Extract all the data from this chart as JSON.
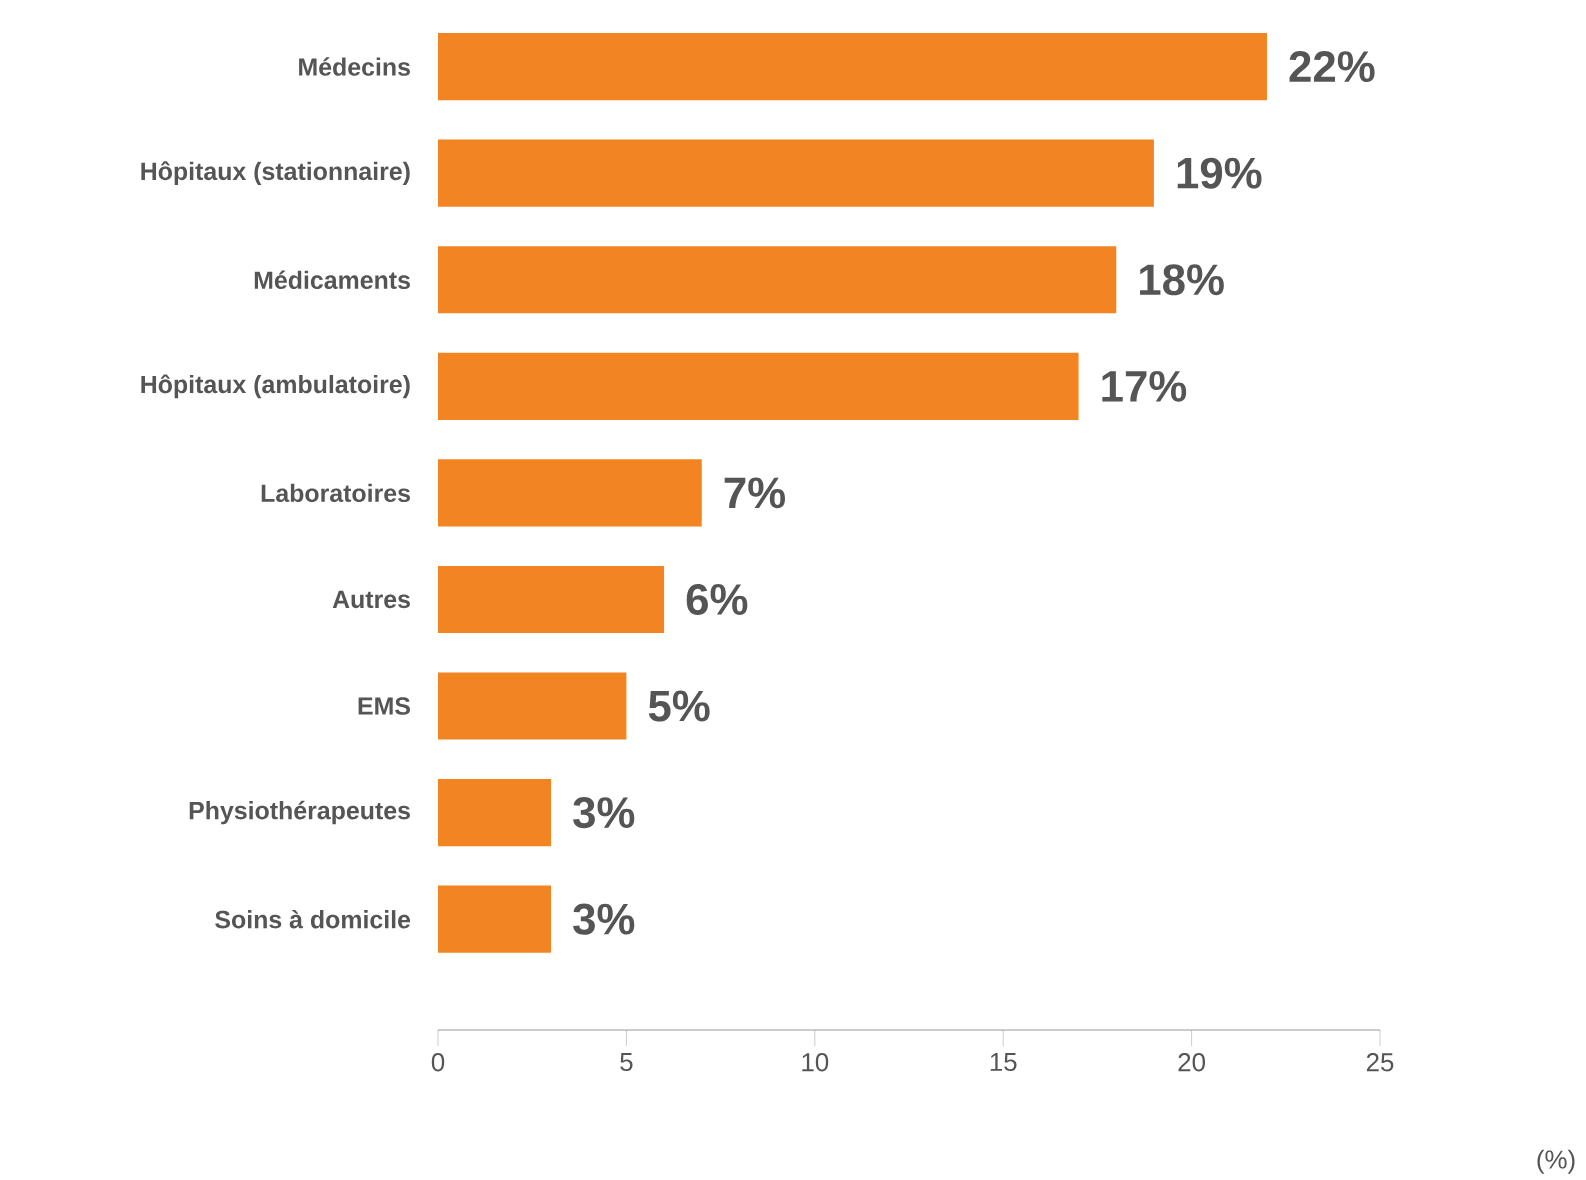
{
  "chart_data": {
    "type": "bar",
    "orientation": "horizontal",
    "categories": [
      "Médecins",
      "Hôpitaux (stationnaire)",
      "Médicaments",
      "Hôpitaux (ambulatoire)",
      "Laboratoires",
      "Autres",
      "EMS",
      "Physiothérapeutes",
      "Soins à domicile"
    ],
    "values": [
      22,
      19,
      18,
      17,
      7,
      6,
      5,
      3,
      3
    ],
    "value_labels": [
      "22%",
      "19%",
      "18%",
      "17%",
      "7%",
      "6%",
      "5%",
      "3%",
      "3%"
    ],
    "color": "#f28522",
    "annotations": [
      "(%)"
    ],
    "xlim": [
      0,
      25
    ],
    "xticks": [
      0,
      5,
      10,
      15,
      20,
      25
    ],
    "grid": false
  }
}
